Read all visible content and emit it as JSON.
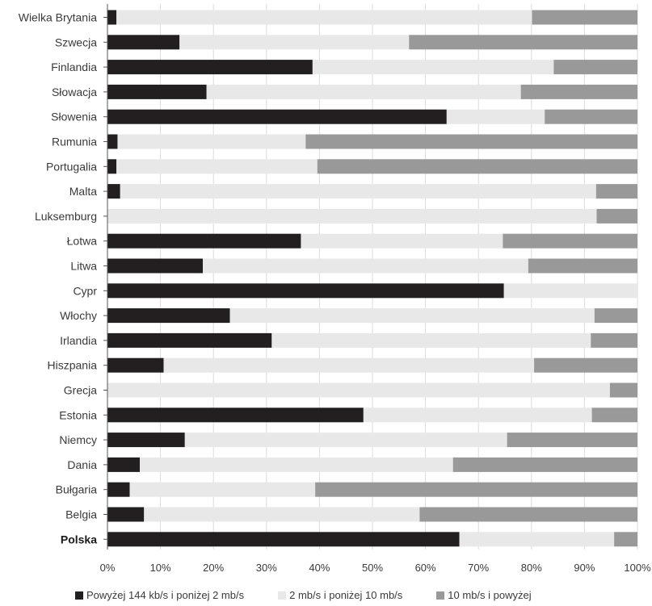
{
  "chart_data": {
    "type": "bar",
    "orientation": "horizontal",
    "stacked": true,
    "title": "",
    "xlabel": "",
    "ylabel": "",
    "xlim": [
      0,
      100
    ],
    "x_tick_labels": [
      "0%",
      "10%",
      "20%",
      "30%",
      "40%",
      "50%",
      "60%",
      "70%",
      "80%",
      "90%",
      "100%"
    ],
    "grid": "vertical",
    "legend_position": "bottom",
    "categories": [
      "Wielka Brytania",
      "Szwecja",
      "Finlandia",
      "Słowacja",
      "Słowenia",
      "Rumunia",
      "Portugalia",
      "Malta",
      "Luksemburg",
      "Łotwa",
      "Litwa",
      "Cypr",
      "Włochy",
      "Irlandia",
      "Hiszpania",
      "Grecja",
      "Estonia",
      "Niemcy",
      "Dania",
      "Bułgaria",
      "Belgia",
      "Polska"
    ],
    "highlight_category": "Polska",
    "series": [
      {
        "name": "Powyżej 144 kb/s i poniżej 2 mb/s",
        "color": "#231f20",
        "values": [
          1.7,
          13.6,
          38.7,
          18.7,
          64.0,
          1.9,
          1.7,
          2.4,
          0,
          36.5,
          18.0,
          74.8,
          23.1,
          31.0,
          10.6,
          0,
          48.3,
          14.6,
          6.1,
          4.2,
          6.9,
          66.4
        ]
      },
      {
        "name": "2 mb/s i poniżej 10 mb/s",
        "color": "#e8e8e8",
        "values": [
          78.4,
          43.3,
          45.5,
          59.3,
          18.5,
          35.5,
          37.9,
          89.8,
          92.3,
          38.1,
          61.4,
          25.2,
          68.8,
          60.2,
          69.9,
          94.8,
          43.1,
          60.8,
          59.1,
          35.0,
          52.0,
          29.2
        ]
      },
      {
        "name": "10 mb/s i powyżej",
        "color": "#999999",
        "values": [
          19.9,
          43.1,
          15.8,
          22.0,
          17.5,
          62.6,
          60.4,
          7.8,
          7.7,
          25.4,
          20.6,
          0,
          8.1,
          8.8,
          19.5,
          5.2,
          8.6,
          24.6,
          34.8,
          60.8,
          41.1,
          4.4
        ]
      }
    ]
  }
}
